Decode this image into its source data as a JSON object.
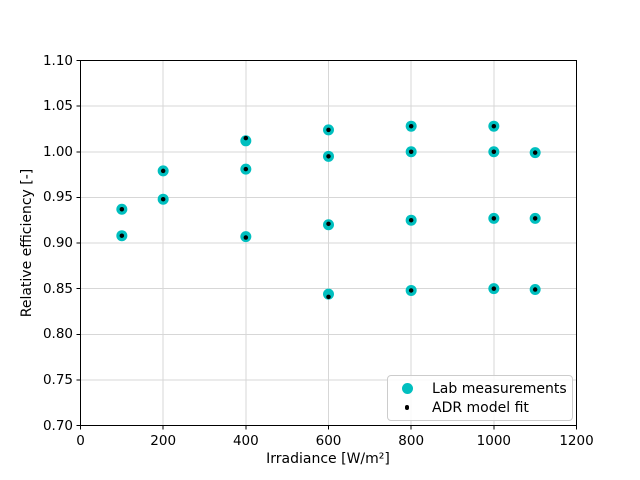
{
  "figure": {
    "background": "#ffffff",
    "text_color": "#000000",
    "axes_frame_color": "#000000"
  },
  "chart_data": {
    "type": "scatter",
    "title": "",
    "xlabel": "Irradiance [W/m²]",
    "ylabel": "Relative efficiency [-]",
    "xlim": [
      0,
      1200
    ],
    "ylim": [
      0.7,
      1.1
    ],
    "grid": true,
    "grid_color": "#d7d7d7",
    "x_ticks": [
      0,
      200,
      400,
      600,
      800,
      1000,
      1200
    ],
    "x_tick_labels": [
      "0",
      "200",
      "400",
      "600",
      "800",
      "1000",
      "1200"
    ],
    "y_ticks": [
      0.7,
      0.75,
      0.8,
      0.85,
      0.9,
      0.95,
      1.0,
      1.05,
      1.1
    ],
    "y_tick_labels": [
      "0.70",
      "0.75",
      "0.80",
      "0.85",
      "0.90",
      "0.95",
      "1.00",
      "1.05",
      "1.10"
    ],
    "legend_position": "lower right",
    "series": [
      {
        "name": "Lab measurements",
        "color": "#00bfbf",
        "marker": "circle",
        "marker_diameter_px": 11,
        "points": [
          [
            100,
            0.937
          ],
          [
            100,
            0.908
          ],
          [
            200,
            0.979
          ],
          [
            200,
            0.948
          ],
          [
            400,
            1.012
          ],
          [
            400,
            0.981
          ],
          [
            400,
            0.907
          ],
          [
            600,
            1.024
          ],
          [
            600,
            0.995
          ],
          [
            600,
            0.92
          ],
          [
            600,
            0.844
          ],
          [
            800,
            1.028
          ],
          [
            800,
            1.0
          ],
          [
            800,
            0.925
          ],
          [
            800,
            0.848
          ],
          [
            1000,
            1.028
          ],
          [
            1000,
            1.0
          ],
          [
            1000,
            0.927
          ],
          [
            1000,
            0.85
          ],
          [
            1100,
            0.999
          ],
          [
            1100,
            0.927
          ],
          [
            1100,
            0.849
          ]
        ]
      },
      {
        "name": "ADR model fit",
        "color": "#000000",
        "marker": "point",
        "marker_diameter_px": 4.5,
        "points": [
          [
            100,
            0.937
          ],
          [
            100,
            0.908
          ],
          [
            200,
            0.979
          ],
          [
            200,
            0.948
          ],
          [
            400,
            1.015
          ],
          [
            400,
            0.981
          ],
          [
            400,
            0.906
          ],
          [
            600,
            1.024
          ],
          [
            600,
            0.995
          ],
          [
            600,
            0.921
          ],
          [
            600,
            0.841
          ],
          [
            800,
            1.028
          ],
          [
            800,
            1.0
          ],
          [
            800,
            0.925
          ],
          [
            800,
            0.848
          ],
          [
            1000,
            1.028
          ],
          [
            1000,
            1.0
          ],
          [
            1000,
            0.927
          ],
          [
            1000,
            0.85
          ],
          [
            1100,
            0.999
          ],
          [
            1100,
            0.927
          ],
          [
            1100,
            0.849
          ]
        ]
      }
    ]
  }
}
